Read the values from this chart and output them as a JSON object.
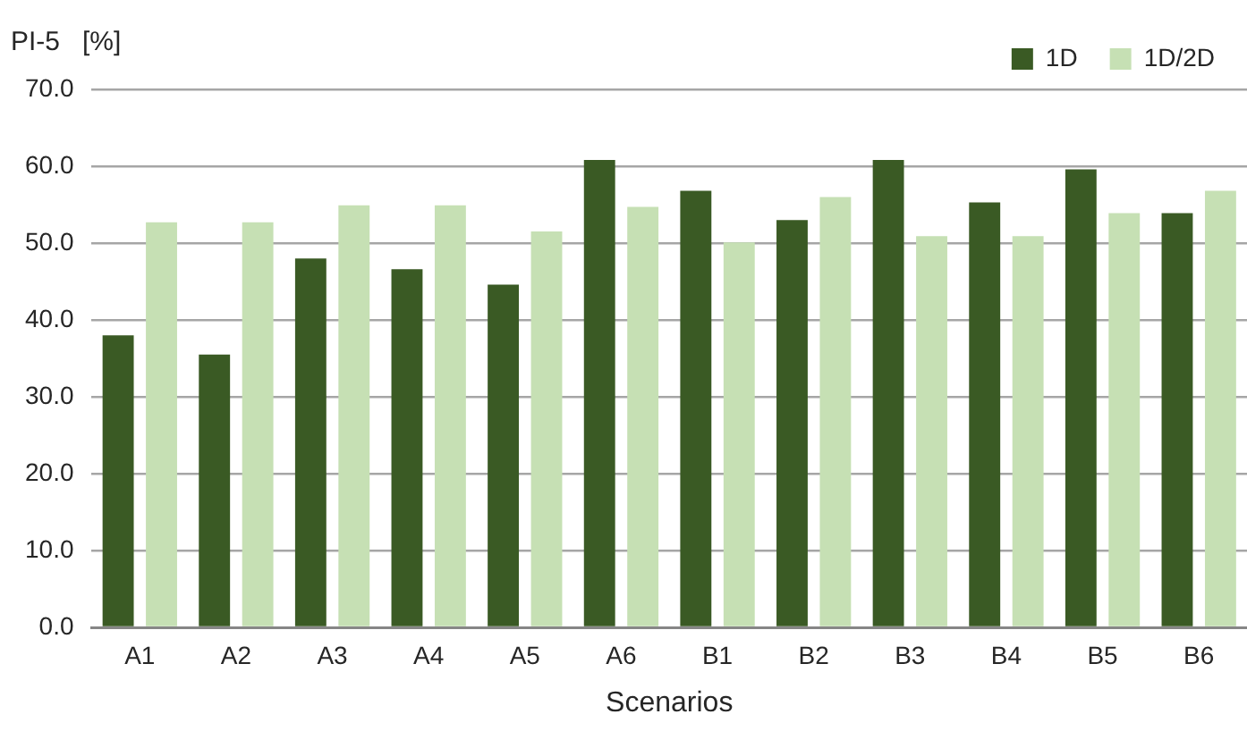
{
  "chart_data": {
    "type": "bar",
    "ylabel": "PI-5   [%]",
    "xlabel": "Scenarios",
    "categories": [
      "A1",
      "A2",
      "A3",
      "A4",
      "A5",
      "A6",
      "B1",
      "B2",
      "B3",
      "B4",
      "B5",
      "B6"
    ],
    "series": [
      {
        "name": "1D",
        "color": "#3a5a24",
        "values": [
          38.0,
          35.5,
          48.0,
          46.6,
          44.6,
          60.8,
          56.8,
          53.0,
          60.8,
          55.3,
          59.6,
          53.9
        ]
      },
      {
        "name": "1D/2D",
        "color": "#c6e0b4",
        "values": [
          52.7,
          52.7,
          54.9,
          54.9,
          51.5,
          54.7,
          50.1,
          56.0,
          50.9,
          50.9,
          53.9,
          56.8
        ]
      }
    ],
    "ylim": [
      0,
      70
    ],
    "yticks": [
      {
        "value": 0,
        "label": "0.0"
      },
      {
        "value": 10,
        "label": "10.0"
      },
      {
        "value": 20,
        "label": "20.0"
      },
      {
        "value": 30,
        "label": "30.0"
      },
      {
        "value": 40,
        "label": "40.0"
      },
      {
        "value": 50,
        "label": "50.0"
      },
      {
        "value": 60,
        "label": "60.0"
      },
      {
        "value": 70,
        "label": "70.0"
      }
    ],
    "grid": "y",
    "legend": "top right"
  }
}
